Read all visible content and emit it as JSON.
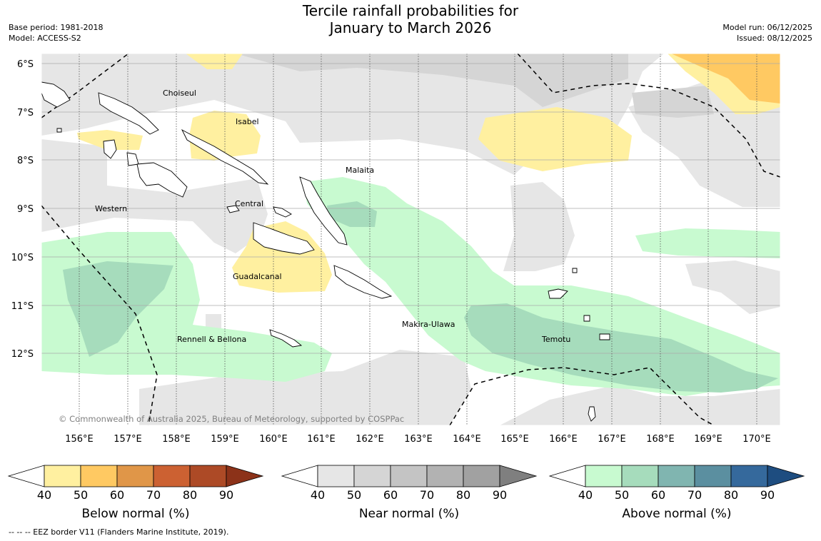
{
  "title_line1": "Tercile rainfall probabilities for",
  "title_line2": "January to March 2026",
  "base_period": "Base period: 1981-2018",
  "model": "Model: ACCESS-S2",
  "model_run": "Model run: 06/12/2025",
  "issued": "Issued: 08/12/2025",
  "copyright": "© Commonwealth of Australia 2025, Bureau of Meteorology, supported by COSPPac",
  "lat_labels": [
    "6°S",
    "7°S",
    "8°S",
    "9°S",
    "10°S",
    "11°S",
    "12°S"
  ],
  "lon_labels": [
    "156°E",
    "157°E",
    "158°E",
    "159°E",
    "160°E",
    "161°E",
    "162°E",
    "163°E",
    "164°E",
    "165°E",
    "166°E",
    "167°E",
    "168°E",
    "169°E",
    "170°E"
  ],
  "regions": [
    {
      "name": "Choiseul"
    },
    {
      "name": "Isabel"
    },
    {
      "name": "Malaita"
    },
    {
      "name": "Western"
    },
    {
      "name": "Central"
    },
    {
      "name": "Guadalcanal"
    },
    {
      "name": "Makira-Ulawa"
    },
    {
      "name": "Rennell & Bellona"
    },
    {
      "name": "Temotu"
    }
  ],
  "colorbars": [
    {
      "title": "Below normal (%)",
      "ticks": [
        "40",
        "50",
        "60",
        "70",
        "80",
        "90"
      ],
      "colors": [
        "#fff0a0",
        "#ffc962",
        "#e09648",
        "#cc6132",
        "#ad4a26",
        "#8c3219"
      ]
    },
    {
      "title": "Near normal (%)",
      "ticks": [
        "40",
        "50",
        "60",
        "70",
        "80",
        "90"
      ],
      "colors": [
        "#e6e6e6",
        "#d5d5d5",
        "#c4c4c4",
        "#b2b2b2",
        "#a1a1a1",
        "#7f7f7f"
      ]
    },
    {
      "title": "Above normal (%)",
      "ticks": [
        "40",
        "50",
        "60",
        "70",
        "80",
        "90"
      ],
      "colors": [
        "#c8fad0",
        "#a6dcbc",
        "#80b5b0",
        "#5b8fa0",
        "#35699c",
        "#1e4d80"
      ]
    }
  ],
  "legend_note": "--  --  -- EEZ border V11 (Flanders Marine Institute, 2019)."
}
